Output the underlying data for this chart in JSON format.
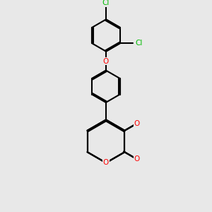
{
  "bg_color": "#e8e8e8",
  "bond_color": "#000000",
  "bond_width": 1.5,
  "atom_colors": {
    "O": "#ff0000",
    "Cl": "#00bb00"
  },
  "figsize": [
    3.0,
    3.0
  ],
  "dpi": 100
}
